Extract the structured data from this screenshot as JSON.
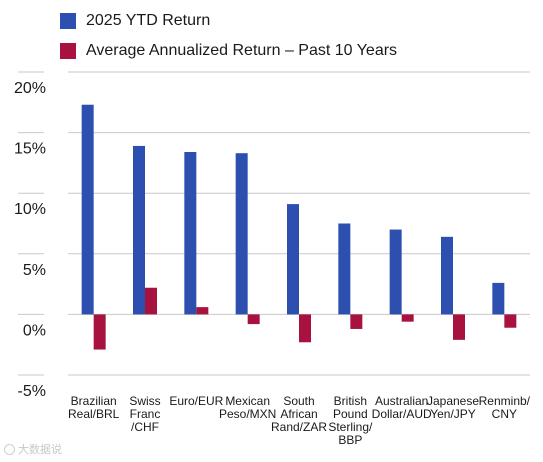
{
  "chart_data": {
    "type": "bar",
    "title": "",
    "xlabel": "",
    "ylabel": "",
    "ylim": [
      -5,
      20
    ],
    "y_ticks": [
      "20%",
      "15%",
      "10%",
      "5%",
      "0%",
      "-5%"
    ],
    "categories": [
      [
        "Brazilian",
        "Real/BRL"
      ],
      [
        "Swiss",
        "Franc",
        "/CHF"
      ],
      [
        "Euro/EUR"
      ],
      [
        "Mexican",
        "Peso/MXN"
      ],
      [
        "South",
        "African",
        "Rand/ZAR"
      ],
      [
        "British",
        "Pound",
        "Sterling/",
        "BBP"
      ],
      [
        "Australian",
        "Dollar/AUD"
      ],
      [
        "Japanese",
        "Yen/JPY"
      ],
      [
        "Renminb/",
        "CNY"
      ]
    ],
    "series": [
      {
        "name": "2025 YTD Return",
        "color": "#2c4fb0",
        "values": [
          17.3,
          13.9,
          13.4,
          13.3,
          9.1,
          7.5,
          7.0,
          6.4,
          2.6
        ]
      },
      {
        "name": "Average Annualized Return – Past 10 Years",
        "color": "#a8123e",
        "values": [
          -2.9,
          2.2,
          0.6,
          -0.8,
          -2.3,
          -1.2,
          -0.6,
          -2.1,
          -1.1
        ]
      }
    ],
    "grid": "horizontal",
    "legend_position": "top-left"
  },
  "watermark": {
    "text": "大数据说",
    "icon": "logo-circle-icon"
  }
}
